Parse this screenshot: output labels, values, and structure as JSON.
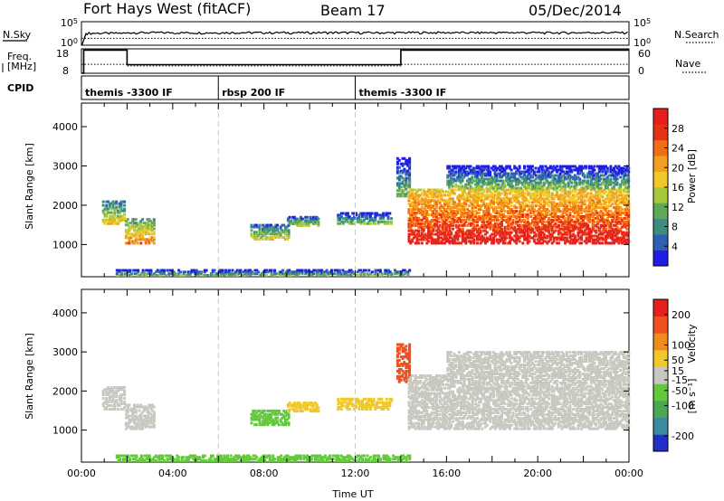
{
  "title": {
    "station": "Fort Hays West (fitACF)",
    "beam": "Beam 17",
    "date": "05/Dec/2014"
  },
  "labels": {
    "nsky": "N.Sky",
    "nsearch": "N.Search",
    "freq_line1": "Freq.",
    "freq_line2": "[MHz]",
    "nave": "Nave",
    "cpid": "CPID",
    "slant_range": "Slant Range [km]",
    "time_ut": "Time UT",
    "power_label": "Power [dB]",
    "velocity_label": "Velocity",
    "velocity_units": "[m s⁻¹]"
  },
  "nsky_ticks": [
    "10^5",
    "10^0"
  ],
  "nsearch_ticks": [
    "10^5",
    "10^0"
  ],
  "freq_ticks": [
    "18",
    "8"
  ],
  "nave_ticks": [
    "60",
    "0"
  ],
  "cpid_segments": [
    {
      "start": 0,
      "end": 6,
      "label": "themis -3300 IF"
    },
    {
      "start": 6,
      "end": 12,
      "label": "rbsp 200 IF"
    },
    {
      "start": 12,
      "end": 24,
      "label": "themis -3300 IF"
    }
  ],
  "chart_data": [
    {
      "type": "line",
      "title": "",
      "series": [
        {
          "name": "N.Sky",
          "x": [
            0,
            0.2,
            2,
            4,
            6,
            8,
            10,
            12,
            14,
            16,
            18,
            20,
            22,
            24
          ],
          "y": [
            1,
            300,
            400,
            380,
            400,
            390,
            400,
            380,
            410,
            390,
            400,
            380,
            400,
            390
          ]
        },
        {
          "name": "N.Search",
          "x": [
            0,
            4,
            8,
            12,
            16,
            20,
            24
          ],
          "y": [
            30,
            30,
            30,
            30,
            30,
            30,
            30
          ]
        }
      ],
      "xlim": [
        0,
        24
      ],
      "ylim": [
        1,
        100000
      ],
      "yscale": "log"
    },
    {
      "type": "line",
      "series": [
        {
          "name": "Freq.",
          "x": [
            0,
            0.1,
            0.1,
            2,
            2,
            14,
            14,
            24
          ],
          "y": [
            8,
            8,
            17.5,
            17.5,
            11.5,
            11.5,
            17.5,
            17.5
          ]
        },
        {
          "name": "Nave",
          "x": [
            0,
            2,
            2,
            14,
            14,
            24
          ],
          "y": [
            22,
            22,
            18,
            18,
            22,
            22
          ]
        }
      ],
      "xlim": [
        0,
        24
      ],
      "ylim_freq": [
        8,
        18
      ],
      "ylim_nave": [
        0,
        60
      ]
    },
    {
      "type": "heatmap",
      "name": "power",
      "xlabel": "",
      "ylabel": "Slant Range [km]",
      "xlim": [
        0,
        24
      ],
      "ylim": [
        180,
        4600
      ],
      "yticks": [
        1000,
        2000,
        3000,
        4000
      ],
      "colorbar": {
        "label": "Power [dB]",
        "ticks": [
          4,
          8,
          12,
          16,
          20,
          24,
          28
        ],
        "range": [
          0,
          32
        ],
        "colors": [
          "#1e1ee6",
          "#2e5fb4",
          "#3c8c82",
          "#60a85a",
          "#a8c83c",
          "#f0c828",
          "#f0a01e",
          "#f06e14",
          "#e63214",
          "#e61e1e"
        ]
      },
      "regions": [
        {
          "t": [
            0.9,
            1.9
          ],
          "r": [
            1500,
            2100
          ],
          "value": 12
        },
        {
          "t": [
            1.9,
            3.2
          ],
          "r": [
            1000,
            1650
          ],
          "value": 16
        },
        {
          "t": [
            7.4,
            9.1
          ],
          "r": [
            1100,
            1500
          ],
          "value": 10
        },
        {
          "t": [
            9.0,
            10.4
          ],
          "r": [
            1450,
            1700
          ],
          "value": 8
        },
        {
          "t": [
            11.2,
            13.6
          ],
          "r": [
            1500,
            1800
          ],
          "value": 6
        },
        {
          "t": [
            13.8,
            14.4
          ],
          "r": [
            2200,
            3200
          ],
          "value": 6
        },
        {
          "t": [
            14.3,
            24.0
          ],
          "r": [
            1000,
            2400
          ],
          "value": 24
        },
        {
          "t": [
            16.0,
            24.0
          ],
          "r": [
            2400,
            3000
          ],
          "value": 6
        },
        {
          "t": [
            1.5,
            14.4
          ],
          "r": [
            180,
            350
          ],
          "value": 5
        }
      ]
    },
    {
      "type": "heatmap",
      "name": "velocity",
      "xlabel": "Time UT",
      "ylabel": "Slant Range [km]",
      "xlim": [
        0,
        24
      ],
      "ylim": [
        180,
        4600
      ],
      "yticks": [
        1000,
        2000,
        3000,
        4000
      ],
      "xticks": [
        "00:00",
        "04:00",
        "08:00",
        "12:00",
        "16:00",
        "20:00",
        "00:00"
      ],
      "colorbar": {
        "label": "Velocity [m s⁻¹]",
        "ticks": [
          200,
          100,
          50,
          15,
          -15,
          -50,
          -100,
          -200
        ],
        "range": [
          -250,
          250
        ],
        "colors": [
          "#2030c8",
          "#3c8ca0",
          "#4ca850",
          "#64c83c",
          "#c8c8c0",
          "#f0c828",
          "#f08c1e",
          "#f0501e",
          "#e61e1e"
        ]
      },
      "regions": [
        {
          "t": [
            0.9,
            1.9
          ],
          "r": [
            1500,
            2100
          ],
          "value": 0
        },
        {
          "t": [
            1.9,
            3.2
          ],
          "r": [
            1000,
            1650
          ],
          "value": 0
        },
        {
          "t": [
            7.4,
            9.1
          ],
          "r": [
            1100,
            1500
          ],
          "value": -70
        },
        {
          "t": [
            9.0,
            10.4
          ],
          "r": [
            1450,
            1700
          ],
          "value": 40
        },
        {
          "t": [
            11.2,
            13.6
          ],
          "r": [
            1500,
            1800
          ],
          "value": 50
        },
        {
          "t": [
            13.8,
            14.4
          ],
          "r": [
            2200,
            3200
          ],
          "value": 180
        },
        {
          "t": [
            14.3,
            24.0
          ],
          "r": [
            1000,
            2400
          ],
          "value": 0
        },
        {
          "t": [
            16.0,
            24.0
          ],
          "r": [
            2400,
            3000
          ],
          "value": 0
        },
        {
          "t": [
            1.5,
            14.4
          ],
          "r": [
            180,
            350
          ],
          "value": -40
        }
      ]
    }
  ]
}
